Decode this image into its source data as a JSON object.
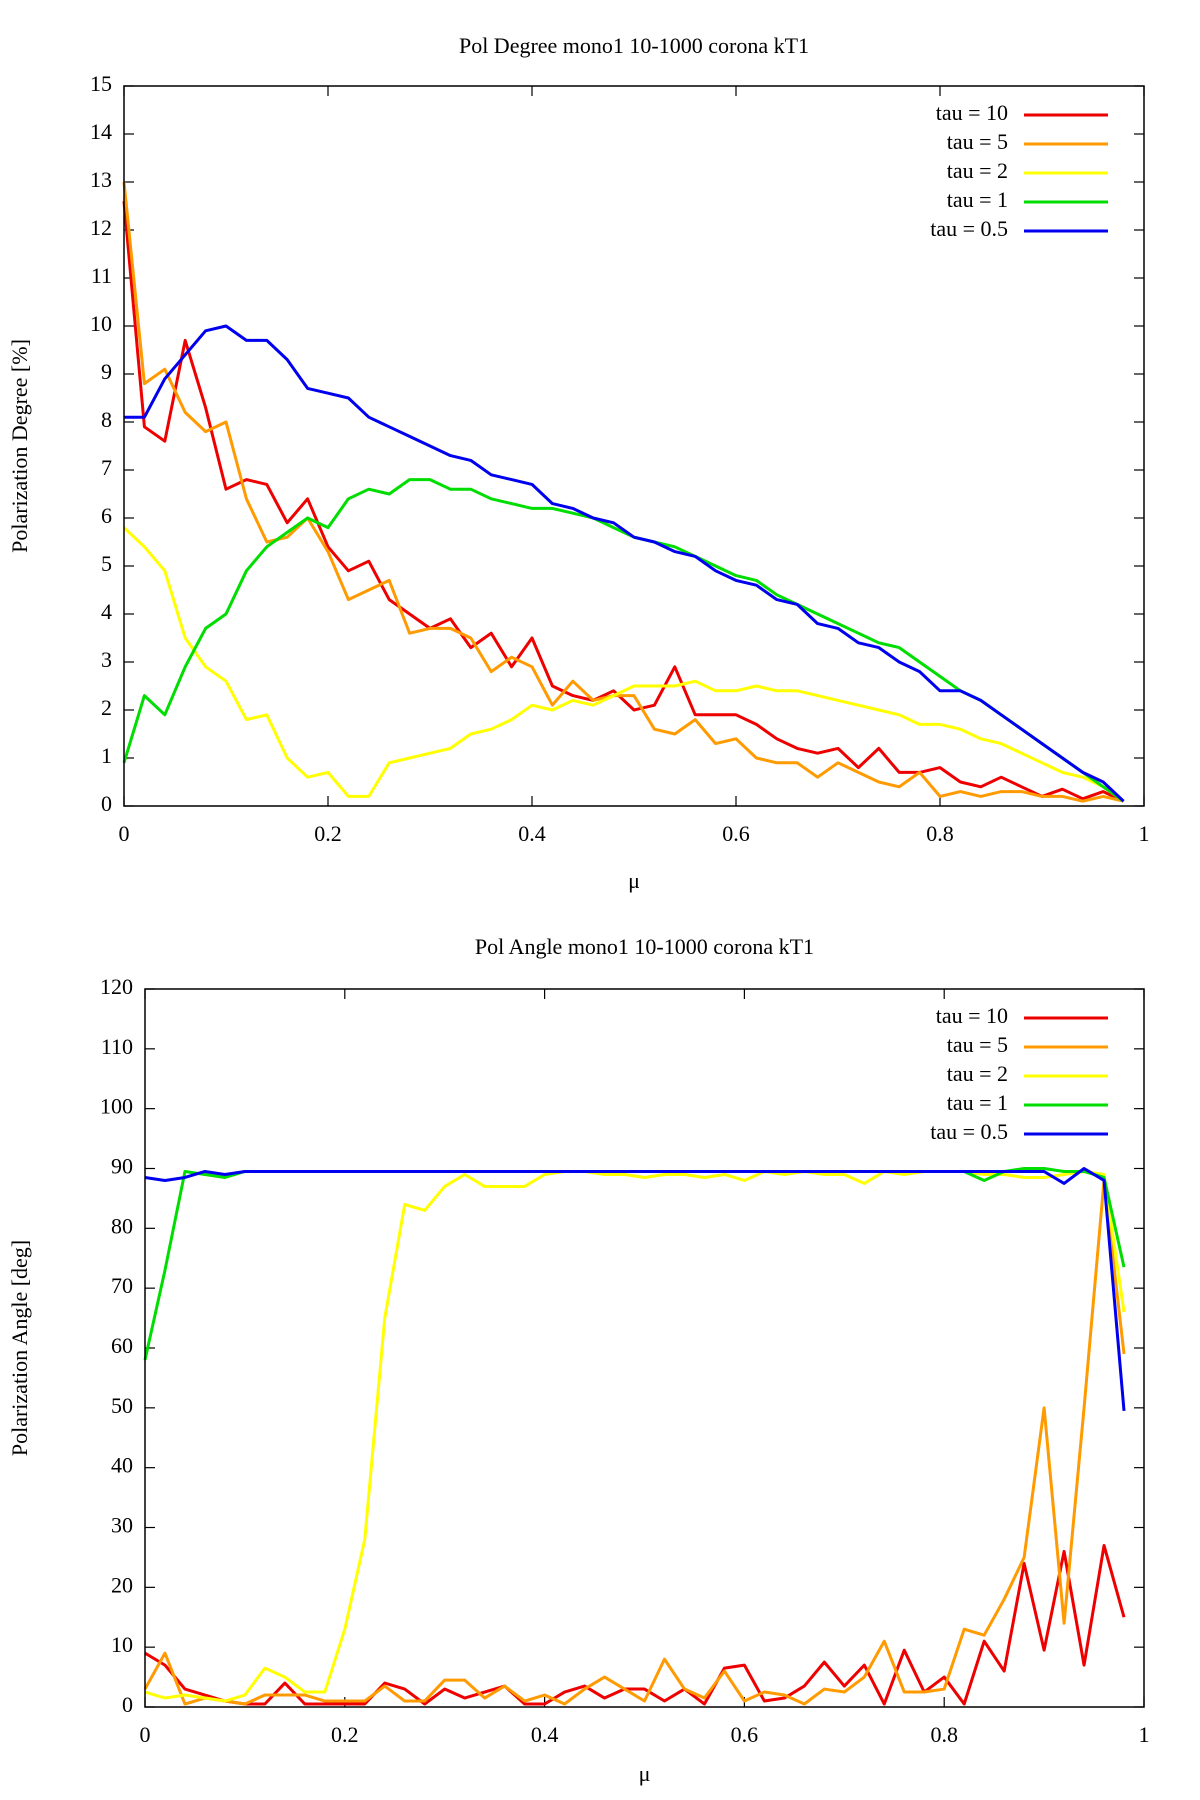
{
  "chart_data": [
    {
      "type": "line",
      "title": "Pol Degree mono1 10-1000 corona kT1",
      "xlabel": "μ",
      "ylabel": "Polarization Degree [%]",
      "xlim": [
        0,
        1
      ],
      "xticks": [
        0,
        0.2,
        0.4,
        0.6,
        0.8,
        1
      ],
      "ylim": [
        0,
        15
      ],
      "yticks": [
        0,
        1,
        2,
        3,
        4,
        5,
        6,
        7,
        8,
        9,
        10,
        11,
        12,
        13,
        14,
        15
      ],
      "legend": "top right",
      "x": [
        0,
        0.02,
        0.04,
        0.06,
        0.08,
        0.1,
        0.12,
        0.14,
        0.16,
        0.18,
        0.2,
        0.22,
        0.24,
        0.26,
        0.28,
        0.3,
        0.32,
        0.34,
        0.36,
        0.38,
        0.4,
        0.42,
        0.44,
        0.46,
        0.48,
        0.5,
        0.52,
        0.54,
        0.56,
        0.58,
        0.6,
        0.62,
        0.64,
        0.66,
        0.68,
        0.7,
        0.72,
        0.74,
        0.76,
        0.78,
        0.8,
        0.82,
        0.84,
        0.86,
        0.88,
        0.9,
        0.92,
        0.94,
        0.96,
        0.98
      ],
      "series": [
        {
          "name": "tau = 10",
          "color": "#ee0000",
          "values": [
            12.6,
            7.9,
            7.6,
            9.7,
            8.3,
            6.6,
            6.8,
            6.7,
            5.9,
            6.4,
            5.4,
            4.9,
            5.1,
            4.3,
            4.0,
            3.7,
            3.9,
            3.3,
            3.6,
            2.9,
            3.5,
            2.5,
            2.3,
            2.2,
            2.4,
            2.0,
            2.1,
            2.9,
            1.9,
            1.9,
            1.9,
            1.7,
            1.4,
            1.2,
            1.1,
            1.2,
            0.8,
            1.2,
            0.7,
            0.7,
            0.8,
            0.5,
            0.4,
            0.6,
            0.4,
            0.2,
            0.35,
            0.15,
            0.3,
            0.1
          ]
        },
        {
          "name": "tau = 5",
          "color": "#ff9a00",
          "values": [
            13.0,
            8.8,
            9.1,
            8.2,
            7.8,
            8.0,
            6.4,
            5.5,
            5.6,
            6.0,
            5.3,
            4.3,
            4.5,
            4.7,
            3.6,
            3.7,
            3.7,
            3.5,
            2.8,
            3.1,
            2.9,
            2.1,
            2.6,
            2.2,
            2.3,
            2.3,
            1.6,
            1.5,
            1.8,
            1.3,
            1.4,
            1.0,
            0.9,
            0.9,
            0.6,
            0.9,
            0.7,
            0.5,
            0.4,
            0.7,
            0.2,
            0.3,
            0.2,
            0.3,
            0.3,
            0.2,
            0.2,
            0.1,
            0.2,
            0.1
          ]
        },
        {
          "name": "tau = 2",
          "color": "#ffff00",
          "values": [
            5.8,
            5.4,
            4.9,
            3.5,
            2.9,
            2.6,
            1.8,
            1.9,
            1.0,
            0.6,
            0.7,
            0.2,
            0.2,
            0.9,
            1.0,
            1.1,
            1.2,
            1.5,
            1.6,
            1.8,
            2.1,
            2.0,
            2.2,
            2.1,
            2.3,
            2.5,
            2.5,
            2.5,
            2.6,
            2.4,
            2.4,
            2.5,
            2.4,
            2.4,
            2.3,
            2.2,
            2.1,
            2.0,
            1.9,
            1.7,
            1.7,
            1.6,
            1.4,
            1.3,
            1.1,
            0.9,
            0.7,
            0.6,
            0.4,
            0.1
          ]
        },
        {
          "name": "tau = 1",
          "color": "#00dd00",
          "values": [
            0.9,
            2.3,
            1.9,
            2.9,
            3.7,
            4.0,
            4.9,
            5.4,
            5.7,
            6.0,
            5.8,
            6.4,
            6.6,
            6.5,
            6.8,
            6.8,
            6.6,
            6.6,
            6.4,
            6.3,
            6.2,
            6.2,
            6.1,
            6.0,
            5.8,
            5.6,
            5.5,
            5.4,
            5.2,
            5.0,
            4.8,
            4.7,
            4.4,
            4.2,
            4.0,
            3.8,
            3.6,
            3.4,
            3.3,
            3.0,
            2.7,
            2.4,
            2.2,
            1.9,
            1.6,
            1.3,
            1.0,
            0.7,
            0.4,
            0.1
          ]
        },
        {
          "name": "tau = 0.5",
          "color": "#0000ee",
          "values": [
            8.1,
            8.1,
            8.9,
            9.4,
            9.9,
            10.0,
            9.7,
            9.7,
            9.3,
            8.7,
            8.6,
            8.5,
            8.1,
            7.9,
            7.7,
            7.5,
            7.3,
            7.2,
            6.9,
            6.8,
            6.7,
            6.3,
            6.2,
            6.0,
            5.9,
            5.6,
            5.5,
            5.3,
            5.2,
            4.9,
            4.7,
            4.6,
            4.3,
            4.2,
            3.8,
            3.7,
            3.4,
            3.3,
            3.0,
            2.8,
            2.4,
            2.4,
            2.2,
            1.9,
            1.6,
            1.3,
            1.0,
            0.7,
            0.5,
            0.1
          ]
        }
      ]
    },
    {
      "type": "line",
      "title": "Pol Angle mono1 10-1000 corona kT1",
      "xlabel": "μ",
      "ylabel": "Polarization Angle [deg]",
      "xlim": [
        0,
        1
      ],
      "xticks": [
        0,
        0.2,
        0.4,
        0.6,
        0.8,
        1
      ],
      "ylim": [
        0,
        120
      ],
      "yticks": [
        0,
        10,
        20,
        30,
        40,
        50,
        60,
        70,
        80,
        90,
        100,
        110,
        120
      ],
      "legend": "top right",
      "x": [
        0,
        0.02,
        0.04,
        0.06,
        0.08,
        0.1,
        0.12,
        0.14,
        0.16,
        0.18,
        0.2,
        0.22,
        0.24,
        0.26,
        0.28,
        0.3,
        0.32,
        0.34,
        0.36,
        0.38,
        0.4,
        0.42,
        0.44,
        0.46,
        0.48,
        0.5,
        0.52,
        0.54,
        0.56,
        0.58,
        0.6,
        0.62,
        0.64,
        0.66,
        0.68,
        0.7,
        0.72,
        0.74,
        0.76,
        0.78,
        0.8,
        0.82,
        0.84,
        0.86,
        0.88,
        0.9,
        0.92,
        0.94,
        0.96,
        0.98
      ],
      "series": [
        {
          "name": "tau = 10",
          "color": "#ee0000",
          "values": [
            9,
            7,
            3,
            2,
            1,
            0.5,
            0.5,
            4,
            0.5,
            0.5,
            0.5,
            0.5,
            4,
            3,
            0.5,
            3,
            1.5,
            2.5,
            3.5,
            0.5,
            0.5,
            2.5,
            3.5,
            1.5,
            3,
            3,
            1,
            3,
            0.5,
            6.5,
            7,
            1,
            1.5,
            3.5,
            7.5,
            3.5,
            7,
            0.5,
            9.5,
            2.5,
            5,
            0.5,
            11,
            6,
            24,
            9.5,
            26,
            7,
            27,
            15
          ]
        },
        {
          "name": "tau = 5",
          "color": "#ff9a00",
          "values": [
            3,
            9,
            0.5,
            1.5,
            1,
            0.5,
            2,
            2,
            2,
            1,
            1,
            1,
            3.5,
            1,
            1,
            4.5,
            4.5,
            1.5,
            3.5,
            1,
            2,
            0.5,
            3,
            5,
            3,
            1,
            8,
            3,
            1.5,
            6,
            1,
            2.5,
            2,
            0.5,
            3,
            2.5,
            5,
            11,
            2.5,
            2.5,
            3,
            13,
            12,
            18,
            25,
            50,
            14,
            50,
            88,
            59
          ]
        },
        {
          "name": "tau = 2",
          "color": "#ffff00",
          "values": [
            2.5,
            1.5,
            2,
            1.5,
            1,
            2,
            6.5,
            5,
            2.5,
            2.5,
            13,
            28,
            65,
            84,
            83,
            87,
            89,
            87,
            87,
            87,
            89,
            89.5,
            89.5,
            89,
            89,
            88.5,
            89,
            89,
            88.5,
            89,
            88,
            89.5,
            89,
            89.5,
            89,
            89,
            87.5,
            89.5,
            89,
            89.5,
            89.5,
            89.5,
            89,
            89,
            88.5,
            88.5,
            89,
            89.5,
            89,
            66
          ]
        },
        {
          "name": "tau = 1",
          "color": "#00dd00",
          "values": [
            58,
            73,
            89.5,
            89,
            88.5,
            89.5,
            89.5,
            89.5,
            89.5,
            89.5,
            89.5,
            89.5,
            89.5,
            89.5,
            89.5,
            89.5,
            89.5,
            89.5,
            89.5,
            89.5,
            89.5,
            89.5,
            89.5,
            89.5,
            89.5,
            89.5,
            89.5,
            89.5,
            89.5,
            89.5,
            89.5,
            89.5,
            89.5,
            89.5,
            89.5,
            89.5,
            89.5,
            89.5,
            89.5,
            89.5,
            89.5,
            89.5,
            88,
            89.5,
            90,
            90,
            89.5,
            89.5,
            88.5,
            73.5
          ]
        },
        {
          "name": "tau = 0.5",
          "color": "#0000ee",
          "values": [
            88.5,
            88,
            88.5,
            89.5,
            89,
            89.5,
            89.5,
            89.5,
            89.5,
            89.5,
            89.5,
            89.5,
            89.5,
            89.5,
            89.5,
            89.5,
            89.5,
            89.5,
            89.5,
            89.5,
            89.5,
            89.5,
            89.5,
            89.5,
            89.5,
            89.5,
            89.5,
            89.5,
            89.5,
            89.5,
            89.5,
            89.5,
            89.5,
            89.5,
            89.5,
            89.5,
            89.5,
            89.5,
            89.5,
            89.5,
            89.5,
            89.5,
            89.5,
            89.5,
            89.5,
            89.5,
            87.5,
            90,
            88,
            49.5
          ]
        }
      ]
    }
  ]
}
